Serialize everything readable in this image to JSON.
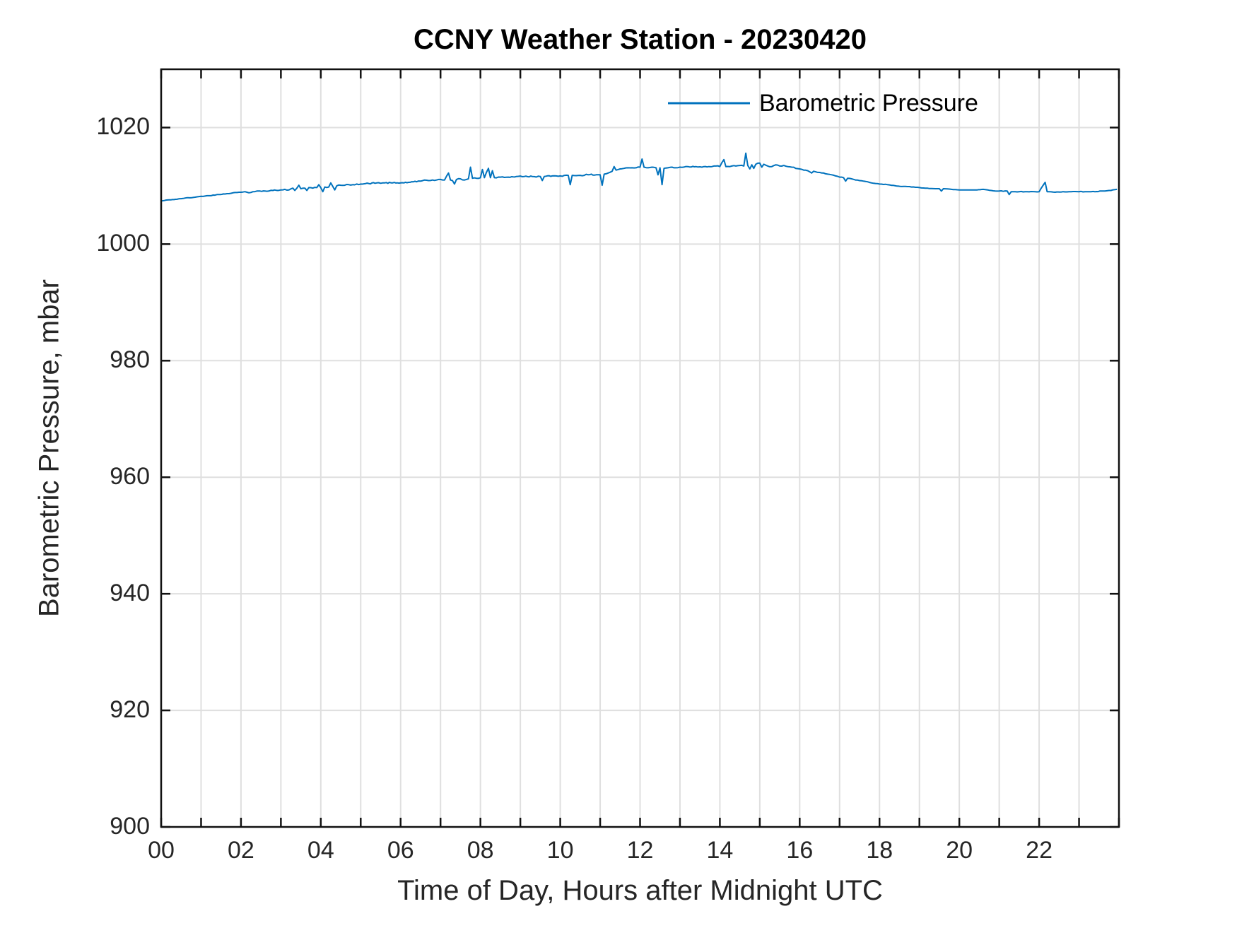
{
  "title": "CCNY Weather Station - 20230420",
  "colors": {
    "line": "#0072BD",
    "grid": "#dfdfdf",
    "axis": "#111111",
    "tick_label": "#262626"
  },
  "legend": {
    "label": "Barometric Pressure"
  },
  "chart_data": {
    "type": "line",
    "title": "CCNY Weather Station - 20230420",
    "xlabel": "Time of Day, Hours after Midnight UTC",
    "ylabel": "Barometric Pressure, mbar",
    "xlim": [
      0,
      24
    ],
    "ylim": [
      900,
      1030
    ],
    "grid": "on",
    "x_tick_step_hours": 1,
    "x_major_tick_values": [
      0,
      2,
      4,
      6,
      8,
      10,
      12,
      14,
      16,
      18,
      20,
      22
    ],
    "x_major_tick_labels": [
      "00",
      "02",
      "04",
      "06",
      "08",
      "10",
      "12",
      "14",
      "16",
      "18",
      "20",
      "22"
    ],
    "y_tick_values": [
      900,
      920,
      940,
      960,
      980,
      1000,
      1020
    ],
    "y_tick_labels": [
      "900",
      "920",
      "940",
      "960",
      "980",
      "1000",
      "1020"
    ],
    "legend": {
      "entries": [
        "Barometric Pressure"
      ],
      "position": "northeast",
      "box": false
    },
    "noise": {
      "t_active": [
        2.5,
        16.0
      ],
      "amp_active": 0.1,
      "amp_calm": 0.045
    },
    "series": [
      {
        "name": "Barometric Pressure",
        "color": "#0072BD",
        "points": [
          [
            0.0,
            1007.4
          ],
          [
            0.2,
            1007.6
          ],
          [
            0.4,
            1007.7
          ],
          [
            0.6,
            1007.9
          ],
          [
            0.8,
            1008.0
          ],
          [
            1.0,
            1008.2
          ],
          [
            1.2,
            1008.3
          ],
          [
            1.4,
            1008.5
          ],
          [
            1.6,
            1008.6
          ],
          [
            1.8,
            1008.8
          ],
          [
            2.0,
            1008.9
          ],
          [
            2.1,
            1009.0
          ],
          [
            2.2,
            1008.8
          ],
          [
            2.3,
            1009.0
          ],
          [
            2.4,
            1009.1
          ],
          [
            2.6,
            1009.1
          ],
          [
            2.8,
            1009.2
          ],
          [
            3.0,
            1009.3
          ],
          [
            3.1,
            1009.4
          ],
          [
            3.2,
            1009.3
          ],
          [
            3.3,
            1009.6
          ],
          [
            3.35,
            1009.2
          ],
          [
            3.4,
            1009.6
          ],
          [
            3.45,
            1010.1
          ],
          [
            3.5,
            1009.5
          ],
          [
            3.6,
            1009.6
          ],
          [
            3.65,
            1009.2
          ],
          [
            3.7,
            1009.7
          ],
          [
            3.8,
            1009.6
          ],
          [
            3.9,
            1009.7
          ],
          [
            3.95,
            1010.2
          ],
          [
            4.0,
            1009.7
          ],
          [
            4.05,
            1009.0
          ],
          [
            4.1,
            1009.8
          ],
          [
            4.2,
            1009.8
          ],
          [
            4.25,
            1010.5
          ],
          [
            4.3,
            1009.9
          ],
          [
            4.35,
            1009.3
          ],
          [
            4.4,
            1010.0
          ],
          [
            4.5,
            1010.1
          ],
          [
            4.6,
            1010.1
          ],
          [
            4.7,
            1010.2
          ],
          [
            4.8,
            1010.2
          ],
          [
            4.9,
            1010.3
          ],
          [
            5.0,
            1010.3
          ],
          [
            5.2,
            1010.4
          ],
          [
            5.4,
            1010.5
          ],
          [
            5.6,
            1010.5
          ],
          [
            5.8,
            1010.5
          ],
          [
            6.0,
            1010.5
          ],
          [
            6.2,
            1010.6
          ],
          [
            6.4,
            1010.7
          ],
          [
            6.5,
            1010.8
          ],
          [
            6.6,
            1011.0
          ],
          [
            6.7,
            1010.9
          ],
          [
            6.8,
            1011.0
          ],
          [
            6.9,
            1011.0
          ],
          [
            7.0,
            1011.1
          ],
          [
            7.1,
            1011.0
          ],
          [
            7.2,
            1012.2
          ],
          [
            7.25,
            1011.0
          ],
          [
            7.3,
            1010.9
          ],
          [
            7.35,
            1010.3
          ],
          [
            7.4,
            1011.1
          ],
          [
            7.5,
            1011.2
          ],
          [
            7.6,
            1011.0
          ],
          [
            7.7,
            1011.2
          ],
          [
            7.75,
            1013.2
          ],
          [
            7.8,
            1011.3
          ],
          [
            7.9,
            1011.3
          ],
          [
            8.0,
            1011.4
          ],
          [
            8.05,
            1012.8
          ],
          [
            8.1,
            1011.4
          ],
          [
            8.2,
            1013.0
          ],
          [
            8.25,
            1011.4
          ],
          [
            8.3,
            1012.6
          ],
          [
            8.35,
            1011.4
          ],
          [
            8.5,
            1011.5
          ],
          [
            8.7,
            1011.5
          ],
          [
            8.9,
            1011.6
          ],
          [
            9.1,
            1011.6
          ],
          [
            9.3,
            1011.6
          ],
          [
            9.5,
            1011.6
          ],
          [
            9.55,
            1010.9
          ],
          [
            9.6,
            1011.6
          ],
          [
            9.8,
            1011.7
          ],
          [
            10.0,
            1011.7
          ],
          [
            10.2,
            1011.8
          ],
          [
            10.25,
            1010.2
          ],
          [
            10.3,
            1011.8
          ],
          [
            10.5,
            1011.8
          ],
          [
            10.7,
            1011.9
          ],
          [
            10.9,
            1011.9
          ],
          [
            11.0,
            1011.9
          ],
          [
            11.05,
            1010.1
          ],
          [
            11.1,
            1012.0
          ],
          [
            11.2,
            1012.2
          ],
          [
            11.3,
            1012.5
          ],
          [
            11.35,
            1013.3
          ],
          [
            11.4,
            1012.7
          ],
          [
            11.5,
            1012.9
          ],
          [
            11.6,
            1013.0
          ],
          [
            11.7,
            1013.1
          ],
          [
            11.8,
            1013.1
          ],
          [
            11.9,
            1013.1
          ],
          [
            12.0,
            1013.2
          ],
          [
            12.05,
            1014.6
          ],
          [
            12.1,
            1013.2
          ],
          [
            12.2,
            1013.1
          ],
          [
            12.3,
            1013.2
          ],
          [
            12.4,
            1013.1
          ],
          [
            12.45,
            1011.9
          ],
          [
            12.5,
            1013.1
          ],
          [
            12.55,
            1010.2
          ],
          [
            12.6,
            1013.0
          ],
          [
            12.7,
            1013.1
          ],
          [
            12.8,
            1013.2
          ],
          [
            12.9,
            1013.1
          ],
          [
            13.0,
            1013.2
          ],
          [
            13.2,
            1013.3
          ],
          [
            13.4,
            1013.3
          ],
          [
            13.6,
            1013.3
          ],
          [
            13.8,
            1013.3
          ],
          [
            13.9,
            1013.4
          ],
          [
            14.0,
            1013.3
          ],
          [
            14.1,
            1014.5
          ],
          [
            14.15,
            1013.3
          ],
          [
            14.3,
            1013.4
          ],
          [
            14.4,
            1013.4
          ],
          [
            14.5,
            1013.5
          ],
          [
            14.6,
            1013.4
          ],
          [
            14.65,
            1015.6
          ],
          [
            14.7,
            1013.5
          ],
          [
            14.75,
            1012.9
          ],
          [
            14.8,
            1013.6
          ],
          [
            14.85,
            1013.0
          ],
          [
            14.9,
            1013.7
          ],
          [
            15.0,
            1013.9
          ],
          [
            15.05,
            1013.2
          ],
          [
            15.1,
            1013.7
          ],
          [
            15.2,
            1013.4
          ],
          [
            15.3,
            1013.3
          ],
          [
            15.4,
            1013.6
          ],
          [
            15.5,
            1013.4
          ],
          [
            15.6,
            1013.5
          ],
          [
            15.7,
            1013.3
          ],
          [
            15.8,
            1013.2
          ],
          [
            15.9,
            1013.0
          ],
          [
            16.0,
            1012.9
          ],
          [
            16.1,
            1012.7
          ],
          [
            16.2,
            1012.6
          ],
          [
            16.3,
            1012.2
          ],
          [
            16.35,
            1012.5
          ],
          [
            16.4,
            1012.4
          ],
          [
            16.5,
            1012.3
          ],
          [
            16.6,
            1012.2
          ],
          [
            16.7,
            1012.0
          ],
          [
            16.8,
            1011.9
          ],
          [
            16.9,
            1011.7
          ],
          [
            17.0,
            1011.5
          ],
          [
            17.1,
            1011.4
          ],
          [
            17.15,
            1010.8
          ],
          [
            17.2,
            1011.3
          ],
          [
            17.3,
            1011.2
          ],
          [
            17.4,
            1011.0
          ],
          [
            17.5,
            1010.9
          ],
          [
            17.6,
            1010.8
          ],
          [
            17.7,
            1010.7
          ],
          [
            17.8,
            1010.5
          ],
          [
            17.9,
            1010.4
          ],
          [
            18.0,
            1010.3
          ],
          [
            18.2,
            1010.2
          ],
          [
            18.4,
            1010.0
          ],
          [
            18.6,
            1009.9
          ],
          [
            18.8,
            1009.8
          ],
          [
            19.0,
            1009.7
          ],
          [
            19.2,
            1009.6
          ],
          [
            19.4,
            1009.5
          ],
          [
            19.5,
            1009.5
          ],
          [
            19.55,
            1009.1
          ],
          [
            19.6,
            1009.5
          ],
          [
            19.8,
            1009.4
          ],
          [
            20.0,
            1009.3
          ],
          [
            20.2,
            1009.3
          ],
          [
            20.4,
            1009.3
          ],
          [
            20.6,
            1009.4
          ],
          [
            20.8,
            1009.2
          ],
          [
            21.0,
            1009.1
          ],
          [
            21.2,
            1009.1
          ],
          [
            21.25,
            1008.5
          ],
          [
            21.3,
            1009.0
          ],
          [
            21.5,
            1009.0
          ],
          [
            21.7,
            1009.0
          ],
          [
            21.9,
            1009.0
          ],
          [
            22.0,
            1009.0
          ],
          [
            22.15,
            1010.6
          ],
          [
            22.2,
            1009.0
          ],
          [
            22.4,
            1008.9
          ],
          [
            22.6,
            1009.0
          ],
          [
            22.8,
            1009.0
          ],
          [
            23.0,
            1009.0
          ],
          [
            23.2,
            1009.0
          ],
          [
            23.4,
            1009.0
          ],
          [
            23.6,
            1009.1
          ],
          [
            23.8,
            1009.2
          ],
          [
            23.95,
            1009.4
          ]
        ]
      }
    ]
  }
}
